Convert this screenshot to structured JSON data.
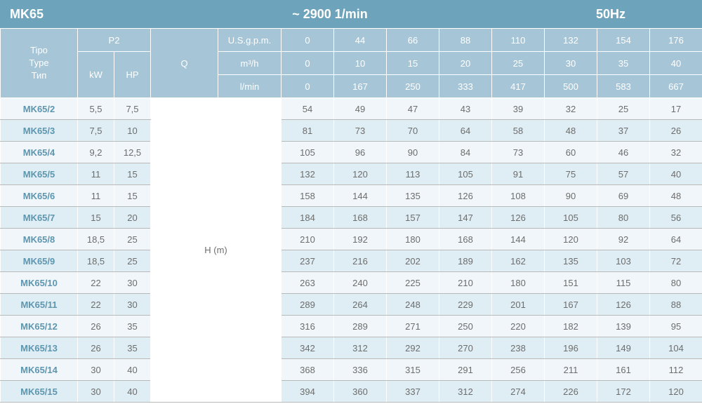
{
  "title_bar": {
    "left": "MK65",
    "mid": "~ 2900 1/min",
    "right": "50Hz"
  },
  "colors": {
    "bar_bg": "#6ea3bc",
    "bar_fg": "#ffffff",
    "hdr_bg": "#a6c5d6",
    "hdr_fg": "#ffffff",
    "row_odd": "#f0f6f9",
    "row_even": "#dfeef4",
    "body_fg": "#6d6d6d",
    "type_fg": "#5e95af",
    "grid": "#b9b9b9"
  },
  "header": {
    "type_label_1": "Tipo",
    "type_label_2": "Type",
    "type_label_3": "Тип",
    "p2": "P2",
    "kw": "kW",
    "hp": "HP",
    "q": "Q",
    "row_labels": [
      "U.S.g.p.m.",
      "m³/h",
      "l/min"
    ],
    "h_label": "H (m)",
    "col_widths": {
      "type": 110,
      "kw": 52,
      "hp": 52,
      "q": 96,
      "rowlabel": 90,
      "val": 75
    }
  },
  "q_rows": [
    [
      "0",
      "44",
      "66",
      "88",
      "110",
      "132",
      "154",
      "176"
    ],
    [
      "0",
      "10",
      "15",
      "20",
      "25",
      "30",
      "35",
      "40"
    ],
    [
      "0",
      "167",
      "250",
      "333",
      "417",
      "500",
      "583",
      "667"
    ]
  ],
  "rows": [
    {
      "type": "MK65/2",
      "kw": "5,5",
      "hp": "7,5",
      "h": [
        "54",
        "49",
        "47",
        "43",
        "39",
        "32",
        "25",
        "17"
      ]
    },
    {
      "type": "MK65/3",
      "kw": "7,5",
      "hp": "10",
      "h": [
        "81",
        "73",
        "70",
        "64",
        "58",
        "48",
        "37",
        "26"
      ]
    },
    {
      "type": "MK65/4",
      "kw": "9,2",
      "hp": "12,5",
      "h": [
        "105",
        "96",
        "90",
        "84",
        "73",
        "60",
        "46",
        "32"
      ]
    },
    {
      "type": "MK65/5",
      "kw": "11",
      "hp": "15",
      "h": [
        "132",
        "120",
        "113",
        "105",
        "91",
        "75",
        "57",
        "40"
      ]
    },
    {
      "type": "MK65/6",
      "kw": "11",
      "hp": "15",
      "h": [
        "158",
        "144",
        "135",
        "126",
        "108",
        "90",
        "69",
        "48"
      ]
    },
    {
      "type": "MK65/7",
      "kw": "15",
      "hp": "20",
      "h": [
        "184",
        "168",
        "157",
        "147",
        "126",
        "105",
        "80",
        "56"
      ]
    },
    {
      "type": "MK65/8",
      "kw": "18,5",
      "hp": "25",
      "h": [
        "210",
        "192",
        "180",
        "168",
        "144",
        "120",
        "92",
        "64"
      ]
    },
    {
      "type": "MK65/9",
      "kw": "18,5",
      "hp": "25",
      "h": [
        "237",
        "216",
        "202",
        "189",
        "162",
        "135",
        "103",
        "72"
      ]
    },
    {
      "type": "MK65/10",
      "kw": "22",
      "hp": "30",
      "h": [
        "263",
        "240",
        "225",
        "210",
        "180",
        "151",
        "115",
        "80"
      ]
    },
    {
      "type": "MK65/11",
      "kw": "22",
      "hp": "30",
      "h": [
        "289",
        "264",
        "248",
        "229",
        "201",
        "167",
        "126",
        "88"
      ]
    },
    {
      "type": "MK65/12",
      "kw": "26",
      "hp": "35",
      "h": [
        "316",
        "289",
        "271",
        "250",
        "220",
        "182",
        "139",
        "95"
      ]
    },
    {
      "type": "MK65/13",
      "kw": "26",
      "hp": "35",
      "h": [
        "342",
        "312",
        "292",
        "270",
        "238",
        "196",
        "149",
        "104"
      ]
    },
    {
      "type": "MK65/14",
      "kw": "30",
      "hp": "40",
      "h": [
        "368",
        "336",
        "315",
        "291",
        "256",
        "211",
        "161",
        "112"
      ]
    },
    {
      "type": "MK65/15",
      "kw": "30",
      "hp": "40",
      "h": [
        "394",
        "360",
        "337",
        "312",
        "274",
        "226",
        "172",
        "120"
      ]
    }
  ]
}
